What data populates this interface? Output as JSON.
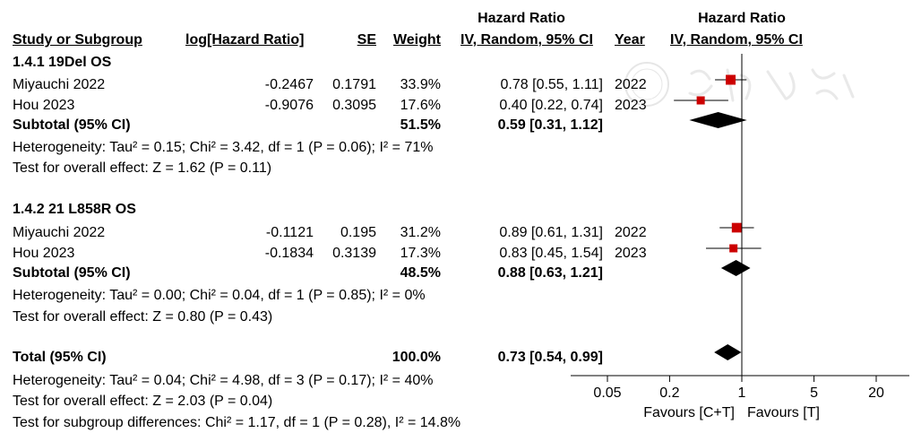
{
  "header": {
    "study_col": "Study or Subgroup",
    "loghr_col": "log[Hazard Ratio]",
    "se_col": "SE",
    "weight_col": "Weight",
    "hr_top": "Hazard Ratio",
    "hr_sub": "IV, Random, 95% CI",
    "year_col": "Year",
    "plot_top": "Hazard Ratio",
    "plot_sub": "IV, Random, 95% CI"
  },
  "groups": [
    {
      "title": "1.4.1 19Del OS",
      "studies": [
        {
          "name": "Miyauchi 2022",
          "loghr": "-0.2467",
          "se": "0.1791",
          "weight": "33.9%",
          "ci": "0.78 [0.55, 1.11]",
          "year": "2022"
        },
        {
          "name": "Hou 2023",
          "loghr": "-0.9076",
          "se": "0.3095",
          "weight": "17.6%",
          "ci": "0.40 [0.22, 0.74]",
          "year": "2023"
        }
      ],
      "subtotal": {
        "label": "Subtotal (95% CI)",
        "weight": "51.5%",
        "ci": "0.59 [0.31, 1.12]"
      },
      "heterogeneity": "Heterogeneity: Tau² = 0.15; Chi² = 3.42, df = 1 (P = 0.06); I² = 71%",
      "overall": "Test for overall effect: Z = 1.62 (P = 0.11)"
    },
    {
      "title": "1.4.2 21 L858R OS",
      "studies": [
        {
          "name": "Miyauchi 2022",
          "loghr": "-0.1121",
          "se": "0.195",
          "weight": "31.2%",
          "ci": "0.89 [0.61, 1.31]",
          "year": "2022"
        },
        {
          "name": "Hou 2023",
          "loghr": "-0.1834",
          "se": "0.3139",
          "weight": "17.3%",
          "ci": "0.83 [0.45, 1.54]",
          "year": "2023"
        }
      ],
      "subtotal": {
        "label": "Subtotal (95% CI)",
        "weight": "48.5%",
        "ci": "0.88 [0.63, 1.21]"
      },
      "heterogeneity": "Heterogeneity: Tau² = 0.00; Chi² = 0.04, df = 1 (P = 0.85); I² = 0%",
      "overall": "Test for overall effect: Z = 0.80 (P = 0.43)"
    }
  ],
  "total": {
    "label": "Total (95% CI)",
    "weight": "100.0%",
    "ci": "0.73 [0.54, 0.99]",
    "heterogeneity": "Heterogeneity: Tau² = 0.04; Chi² = 4.98, df = 3 (P = 0.17); I² = 40%",
    "overall": "Test for overall effect: Z = 2.03 (P = 0.04)",
    "subgroup": "Test for subgroup differences: Chi² = 1.17, df = 1 (P = 0.28), I² = 14.8%"
  },
  "colors": {
    "square": "#cc0000",
    "diamond": "#000000",
    "line": "#000000"
  },
  "chart_data": {
    "type": "forest",
    "x_scale": "log",
    "xlim": [
      0.05,
      20
    ],
    "ticks": [
      0.05,
      0.2,
      1,
      5,
      20
    ],
    "tick_labels": [
      "0.05",
      "0.2",
      "1",
      "5",
      "20"
    ],
    "favours_left": "Favours [C+T]",
    "favours_right": "Favours [T]",
    "studies": [
      {
        "hr": 0.78,
        "lo": 0.55,
        "hi": 1.11,
        "weight": 33.9
      },
      {
        "hr": 0.4,
        "lo": 0.22,
        "hi": 0.74,
        "weight": 17.6
      },
      {
        "hr": 0.89,
        "lo": 0.61,
        "hi": 1.31,
        "weight": 31.2
      },
      {
        "hr": 0.83,
        "lo": 0.45,
        "hi": 1.54,
        "weight": 17.3
      }
    ],
    "summaries": [
      {
        "hr": 0.59,
        "lo": 0.31,
        "hi": 1.12
      },
      {
        "hr": 0.88,
        "lo": 0.63,
        "hi": 1.21
      },
      {
        "hr": 0.73,
        "lo": 0.54,
        "hi": 0.99
      }
    ]
  }
}
